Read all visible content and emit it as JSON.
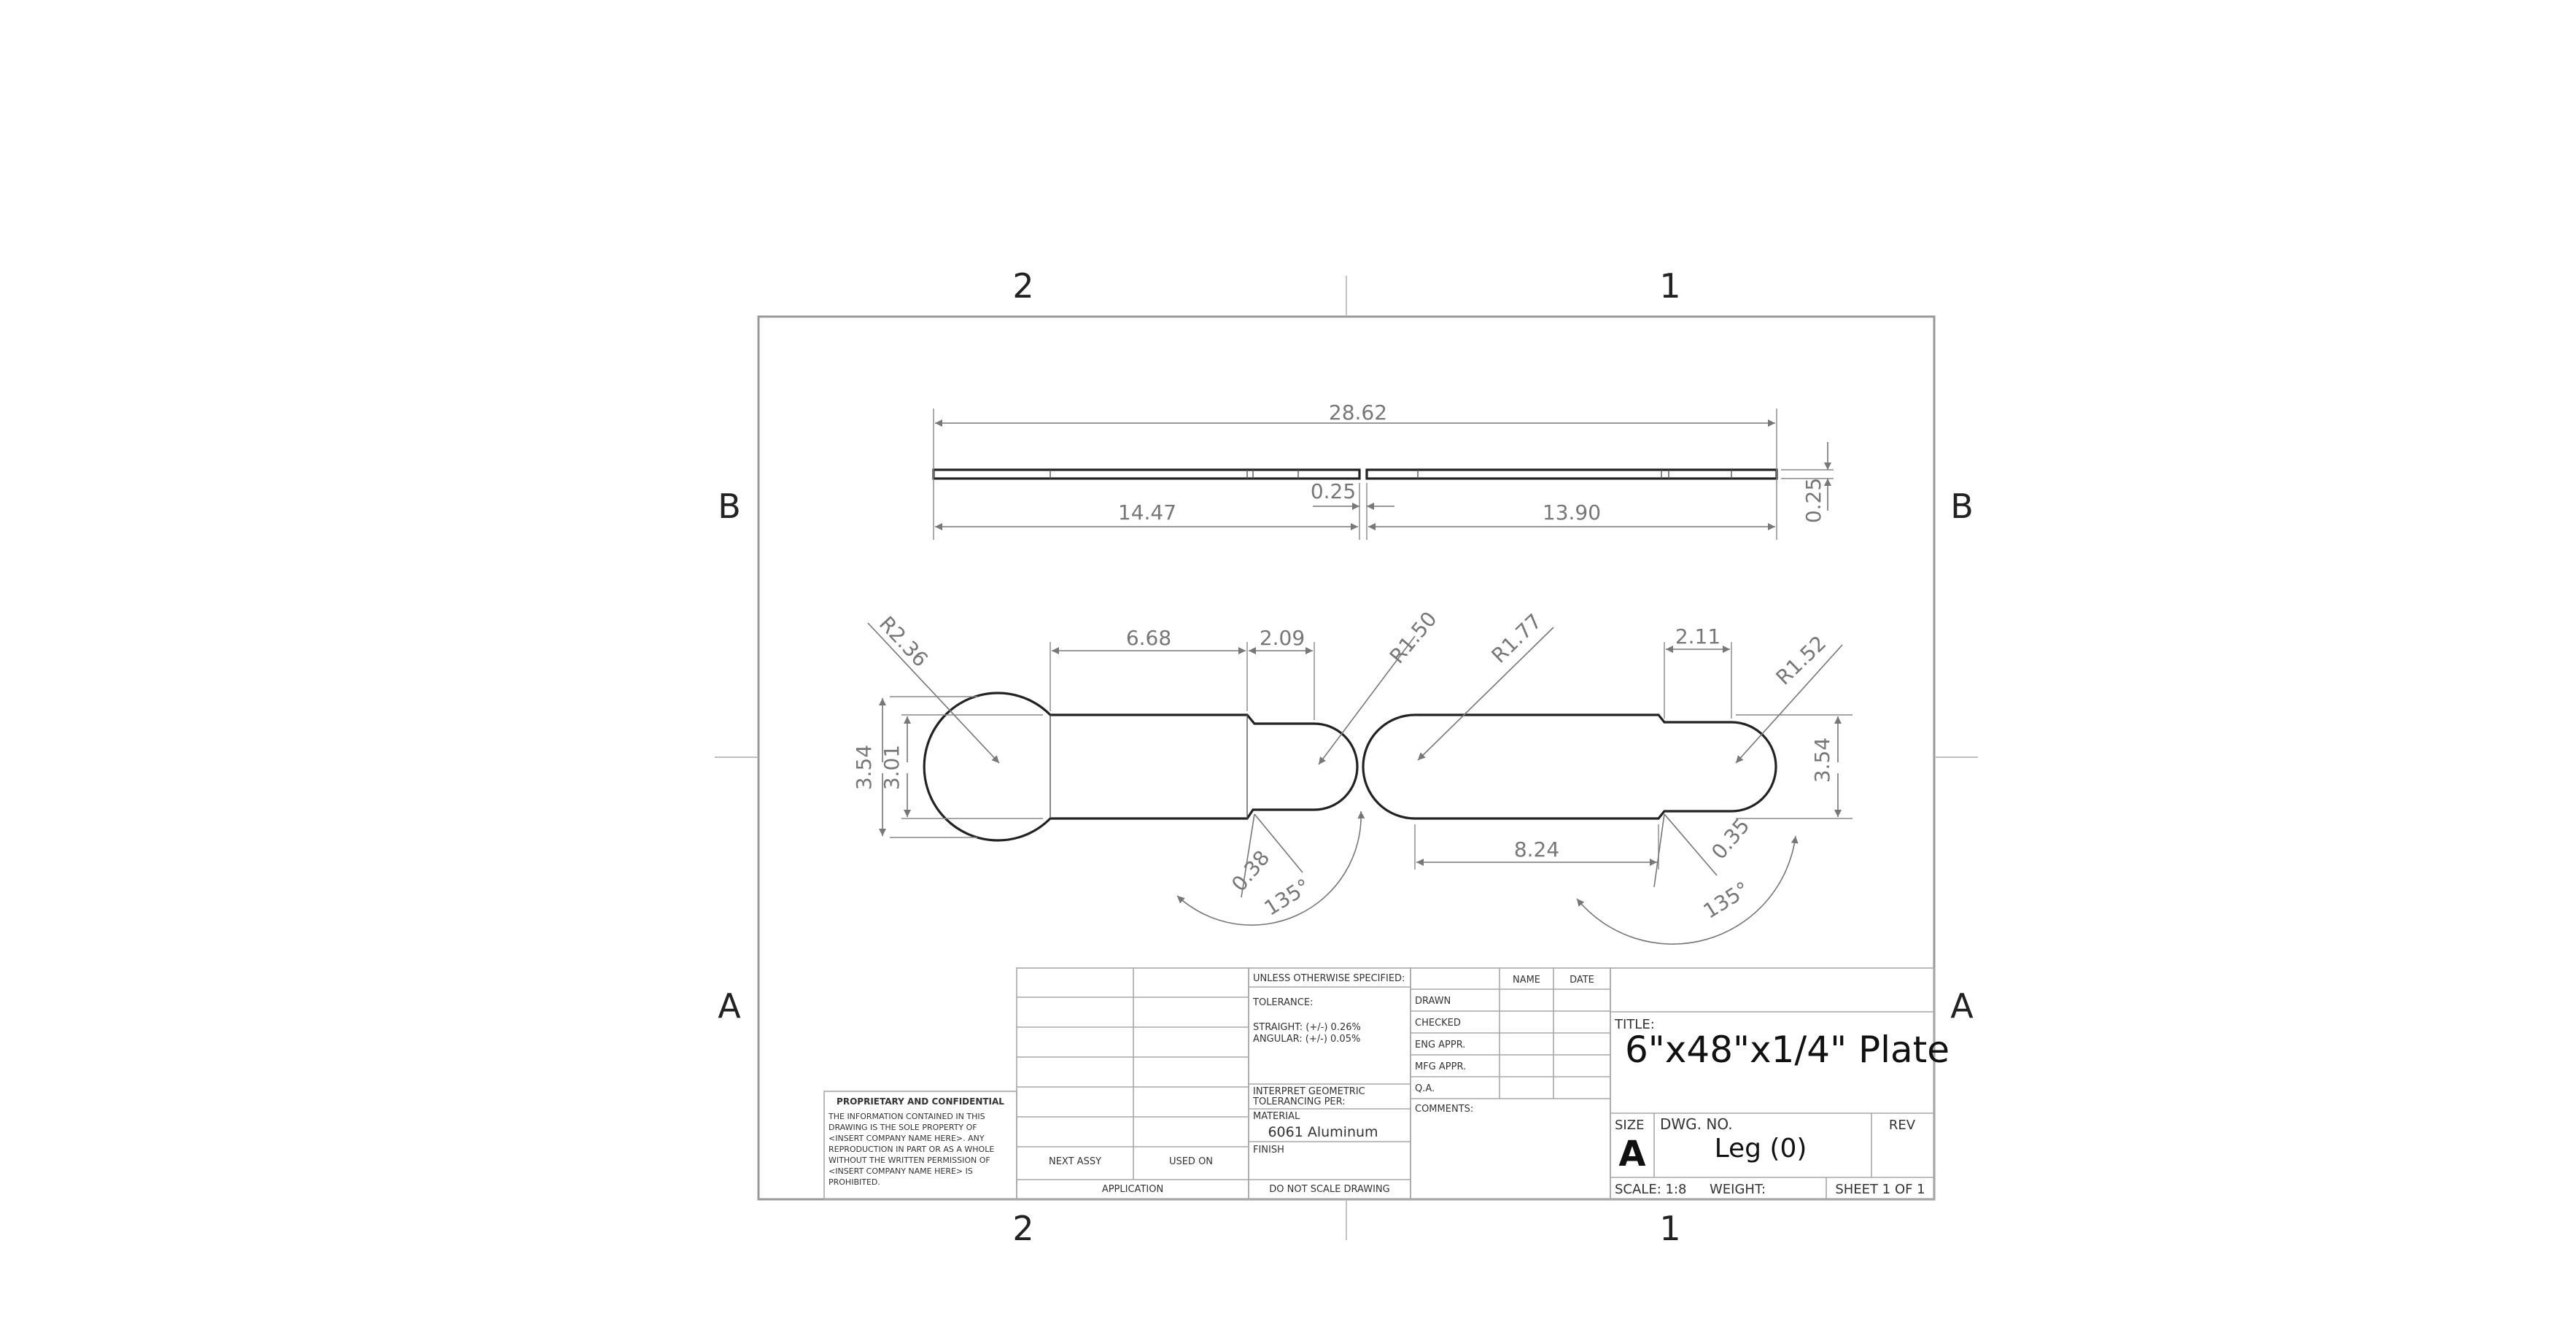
{
  "zones": {
    "top": [
      "2",
      "1"
    ],
    "bottom": [
      "2",
      "1"
    ],
    "left": [
      "B",
      "A"
    ],
    "right": [
      "B",
      "A"
    ]
  },
  "dimensions": {
    "overall_length": "28.62",
    "left_length": "14.47",
    "right_length": "13.90",
    "gap": "0.25",
    "thickness": "0.25",
    "radius_left_end": "R2.36",
    "shaft_length": "6.68",
    "neck_length_left": "2.09",
    "radius_left_tip": "R1.50",
    "radius_right_left_end": "R1.77",
    "neck_length_right": "2.11",
    "radius_right_tip": "R1.52",
    "outer_dia_left": "3.54",
    "inner_dia_left": "3.01",
    "dia_right": "3.54",
    "chamfer_left": "0.38",
    "angle_left": "135°",
    "right_length_bottom": "8.24",
    "chamfer_right": "0.35",
    "angle_right": "135°"
  },
  "title_block": {
    "proprietary_title": "PROPRIETARY AND CONFIDENTIAL",
    "proprietary_lines": [
      "THE INFORMATION CONTAINED IN THIS",
      "DRAWING IS THE SOLE PROPERTY OF",
      "<INSERT COMPANY NAME HERE>. ANY",
      "REPRODUCTION IN PART OR AS A WHOLE",
      "WITHOUT THE WRITTEN PERMISSION OF",
      "<INSERT COMPANY NAME HERE> IS",
      "PROHIBITED."
    ],
    "next_assy": "NEXT ASSY",
    "used_on": "USED ON",
    "application": "APPLICATION",
    "unless_specified": "UNLESS OTHERWISE SPECIFIED:",
    "tolerance": "TOLERANCE:",
    "straight": "STRAIGHT: (+/-) 0.26%",
    "angular": "ANGULAR: (+/-) 0.05%",
    "interpret_1": "INTERPRET GEOMETRIC",
    "interpret_2": "TOLERANCING PER:",
    "material_label": "MATERIAL",
    "material": "6061 Aluminum",
    "finish_label": "FINISH",
    "do_not_scale": "DO NOT SCALE DRAWING",
    "name_header": "NAME",
    "date_header": "DATE",
    "rows": [
      "DRAWN",
      "CHECKED",
      "ENG APPR.",
      "MFG APPR.",
      "Q.A."
    ],
    "comments": "COMMENTS:",
    "title_label": "TITLE:",
    "title": "6\"x48\"x1/4\" Plate",
    "size_label": "SIZE",
    "size": "A",
    "dwg_no_label": "DWG.  NO.",
    "dwg_no": "Leg (0)",
    "rev_label": "REV",
    "scale": "SCALE: 1:8",
    "weight": "WEIGHT:",
    "sheet": "SHEET 1 OF 1"
  }
}
